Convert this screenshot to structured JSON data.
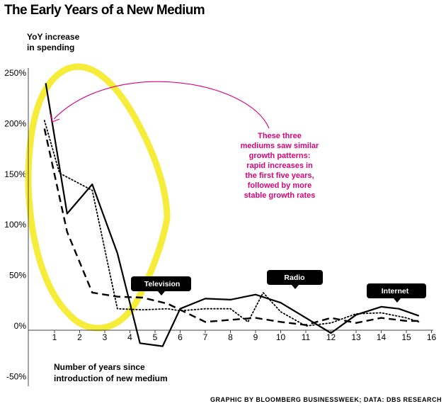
{
  "chart_data": {
    "type": "line",
    "title": "The Early Years of a New Medium",
    "ylabel_lines": [
      "YoY increase",
      "in spending"
    ],
    "xlabel_lines": [
      "Number of years since",
      "introduction of new medium"
    ],
    "y_ticks": [
      250,
      200,
      150,
      100,
      50,
      0,
      -50
    ],
    "y_tick_labels": [
      "250%",
      "200%",
      "150%",
      "100%",
      "50%",
      "0%",
      "-50%"
    ],
    "ylim": [
      -50,
      250
    ],
    "x_ticks": [
      1,
      2,
      3,
      4,
      5,
      6,
      7,
      8,
      9,
      10,
      11,
      12,
      13,
      14,
      15,
      16
    ],
    "x_tick_labels": [
      "1",
      "2",
      "3",
      "4",
      "5",
      "6",
      "7",
      "8",
      "9",
      "10",
      "11",
      "12",
      "13",
      "14",
      "15",
      "16"
    ],
    "xlim": [
      0.5,
      16.5
    ],
    "series": [
      {
        "name": "Television",
        "style": "solid",
        "x": [
          0.65,
          1.5,
          2.5,
          3.5,
          4.4,
          5.3,
          6.0,
          7.0,
          8.0,
          9.0,
          10.0,
          11.0,
          12.0,
          13.0,
          14.0,
          14.7,
          15.5
        ],
        "values": [
          240,
          111,
          140,
          72,
          -17,
          -20,
          17,
          27,
          26,
          31,
          23,
          8,
          -7,
          11,
          19,
          17,
          10
        ]
      },
      {
        "name": "Radio",
        "style": "dotted",
        "x": [
          0.6,
          1.2,
          2.5,
          3.5,
          4.5,
          5.5,
          6.0,
          7.0,
          8.0,
          8.7,
          9.3,
          10.0,
          11.0,
          12.0,
          13.0,
          14.0,
          15.0,
          15.5
        ],
        "values": [
          203,
          151,
          134,
          17,
          16,
          17,
          15,
          17,
          17,
          4,
          33,
          14,
          0,
          3,
          12,
          13,
          8,
          4
        ]
      },
      {
        "name": "Internet",
        "style": "dashed",
        "x": [
          0.6,
          1.5,
          2.5,
          3.5,
          4.5,
          5.5,
          6.0,
          7.0,
          8.0,
          9.0,
          10.0,
          11.0,
          12.0,
          13.0,
          14.0,
          15.0,
          15.5
        ],
        "values": [
          195,
          93,
          33,
          29,
          28,
          22,
          16,
          4,
          6,
          8,
          4,
          1,
          8,
          3,
          8,
          5,
          5
        ]
      }
    ],
    "labels": [
      {
        "series": "Television",
        "text": "Television"
      },
      {
        "series": "Radio",
        "text": "Radio"
      },
      {
        "series": "Internet",
        "text": "Internet"
      }
    ],
    "annotation": {
      "lines": [
        "These three",
        "mediums saw similar",
        "growth patterns:",
        "rapid increases in",
        "the first five years,",
        "followed by more",
        "stable growth rates"
      ],
      "highlight": "first five years"
    },
    "credit": "GRAPHIC BY BLOOMBERG BUSINESSWEEK; DATA: DBS RESEARCH",
    "colors": {
      "ink": "#000000",
      "axis": "#444444",
      "accent": "#e0007a",
      "highlight": "#f5ea25",
      "tag_bg": "#000000",
      "tag_text": "#ffffff"
    }
  }
}
